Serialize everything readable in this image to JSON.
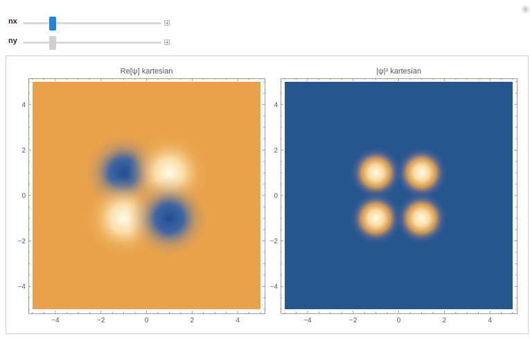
{
  "controls": [
    {
      "label": "nx",
      "thumb_color": "#1a86e0",
      "value_fraction": 0.2
    },
    {
      "label": "ny",
      "thumb_color": "#cfcfcf",
      "value_fraction": 0.2
    }
  ],
  "chart_data": [
    {
      "type": "heatmap",
      "title": "Re[ψ]  kartesian",
      "function": "Re[psi] for nx=1, ny=1 (Hermite-Gauss), colormap orange background, blue negative, cream positive",
      "xlim": [
        -5,
        5
      ],
      "ylim": [
        -5,
        5
      ],
      "xticks": [
        -4,
        -2,
        0,
        2,
        4
      ],
      "yticks": [
        -4,
        -2,
        0,
        2,
        4
      ],
      "xtick_labels": [
        "−4",
        "−2",
        "0",
        "2",
        "4"
      ],
      "ytick_labels": [
        "−4",
        "−2",
        "0",
        "2",
        "4"
      ],
      "background_color": "#e8a24a",
      "lobes": [
        {
          "x": -1,
          "y": 1,
          "sign": "negative",
          "color": "#23569a"
        },
        {
          "x": 1,
          "y": 1,
          "sign": "positive",
          "color": "#fff6dc"
        },
        {
          "x": -1,
          "y": -1,
          "sign": "positive",
          "color": "#fff6dc"
        },
        {
          "x": 1,
          "y": -1,
          "sign": "negative",
          "color": "#23569a"
        }
      ]
    },
    {
      "type": "heatmap",
      "title": "|ψ|² kartesian",
      "function": "|psi|^2 for nx=1, ny=1, colormap blue background, orange/cream peaks",
      "xlim": [
        -5,
        5
      ],
      "ylim": [
        -5,
        5
      ],
      "xticks": [
        -4,
        -2,
        0,
        2,
        4
      ],
      "yticks": [
        -4,
        -2,
        0,
        2,
        4
      ],
      "xtick_labels": [
        "−4",
        "−2",
        "0",
        "2",
        "4"
      ],
      "ytick_labels": [
        "−4",
        "−2",
        "0",
        "2",
        "4"
      ],
      "background_color": "#26568e",
      "lobes": [
        {
          "x": -1,
          "y": 1,
          "color": "#fff6dc"
        },
        {
          "x": 1,
          "y": 1,
          "color": "#fff6dc"
        },
        {
          "x": -1,
          "y": -1,
          "color": "#fff6dc"
        },
        {
          "x": 1,
          "y": -1,
          "color": "#fff6dc"
        }
      ]
    }
  ]
}
